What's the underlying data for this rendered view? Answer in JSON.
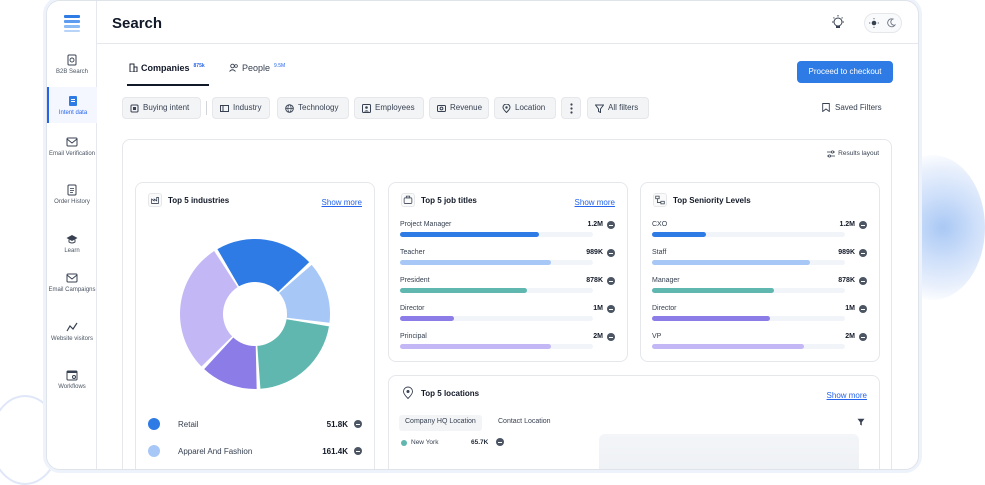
{
  "page": {
    "title": "Search"
  },
  "colors": {
    "accent": "#2f7be5",
    "blue": "#2f7be5",
    "light_blue": "#a7c7f7",
    "teal": "#5fb7b0",
    "purple": "#8b7ce8",
    "lavender": "#c3b8f5"
  },
  "sidebar": {
    "items": [
      {
        "label": "B2B Search",
        "icon": "search-doc-icon"
      },
      {
        "label": "Intent data",
        "icon": "intent-doc-icon",
        "active": true
      },
      {
        "label": "Email Verification",
        "icon": "mail-check-icon"
      },
      {
        "label": "Order History",
        "icon": "document-icon"
      },
      {
        "label": "Learn",
        "icon": "graduation-cap-icon"
      },
      {
        "label": "Email Campaigns",
        "icon": "mail-send-icon"
      },
      {
        "label": "Website visitors",
        "icon": "cursor-icon"
      },
      {
        "label": "Workflows",
        "icon": "workflow-icon"
      }
    ]
  },
  "tabs": [
    {
      "label": "Companies",
      "count": "875k",
      "active": true
    },
    {
      "label": "People",
      "count": "9.5M",
      "active": false
    }
  ],
  "checkout_label": "Proceed to checkout",
  "filters": {
    "chips": [
      "Buying intent",
      "Industry",
      "Technology",
      "Employees",
      "Revenue",
      "Location",
      "All filters"
    ],
    "saved_label": "Saved Filters"
  },
  "results_layout_label": "Results layout",
  "industries": {
    "title": "Top 5 industries",
    "show_more": "Show more",
    "legend": [
      {
        "label": "Retail",
        "value": "51.8K",
        "color": "#2f7be5"
      },
      {
        "label": "Apparel And Fashion",
        "value": "161.4K",
        "color": "#a7c7f7"
      }
    ]
  },
  "job_titles": {
    "title": "Top 5 job titles",
    "show_more": "Show more",
    "rows": [
      {
        "label": "Project Manager",
        "value": "1.2M",
        "fill": 0.72,
        "color": "#2f7be5"
      },
      {
        "label": "Teacher",
        "value": "989K",
        "fill": 0.78,
        "color": "#a7c7f7"
      },
      {
        "label": "President",
        "value": "878K",
        "fill": 0.66,
        "color": "#5fb7b0"
      },
      {
        "label": "Director",
        "value": "1M",
        "fill": 0.28,
        "color": "#8b7ce8"
      },
      {
        "label": "Principal",
        "value": "2M",
        "fill": 0.78,
        "color": "#c3b8f5"
      }
    ]
  },
  "seniority": {
    "title": "Top Seniority Levels",
    "rows": [
      {
        "label": "CXO",
        "value": "1.2M",
        "fill": 0.28,
        "color": "#2f7be5"
      },
      {
        "label": "Staff",
        "value": "989K",
        "fill": 0.82,
        "color": "#a7c7f7"
      },
      {
        "label": "Manager",
        "value": "878K",
        "fill": 0.63,
        "color": "#5fb7b0"
      },
      {
        "label": "Director",
        "value": "1M",
        "fill": 0.61,
        "color": "#8b7ce8"
      },
      {
        "label": "VP",
        "value": "2M",
        "fill": 0.79,
        "color": "#c3b8f5"
      }
    ]
  },
  "locations": {
    "title": "Top 5 locations",
    "show_more": "Show more",
    "subtabs": [
      "Company HQ Location",
      "Contact Location"
    ],
    "rows": [
      {
        "label": "New York",
        "value": "65.7K"
      }
    ]
  },
  "chart_data": {
    "type": "pie",
    "categories": [
      "Retail",
      "Apparel And Fashion",
      "Teal segment",
      "Purple segment",
      "Lavender segment"
    ],
    "values": [
      22,
      14,
      22,
      13,
      29
    ],
    "colors": [
      "#2f7be5",
      "#a7c7f7",
      "#5fb7b0",
      "#8b7ce8",
      "#c3b8f5"
    ],
    "title": "Top 5 industries"
  }
}
